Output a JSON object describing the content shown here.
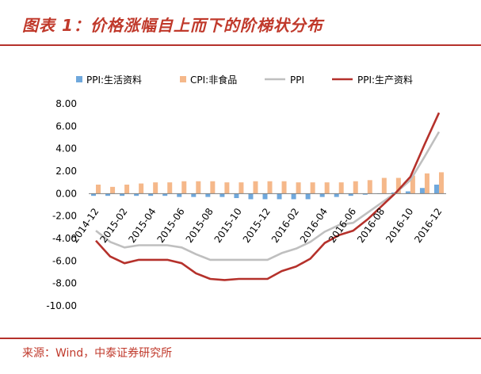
{
  "header": {
    "title": "图表 1：价格涨幅自上而下的阶梯状分布"
  },
  "footer": {
    "source": "来源：Wind，中泰证券研究所"
  },
  "chart_data": {
    "type": "bar+line",
    "y_ticks": [
      "8.00",
      "6.00",
      "4.00",
      "2.00",
      "0.00",
      "-2.00",
      "-4.00",
      "-6.00",
      "-8.00",
      "-10.00"
    ],
    "ylim": [
      -10,
      8
    ],
    "x_tick_labels": [
      "2014-12",
      "2015-02",
      "2015-04",
      "2015-06",
      "2015-08",
      "2015-10",
      "2015-12",
      "2016-02",
      "2016-04",
      "2016-06",
      "2016-08",
      "2016-10",
      "2016-12"
    ],
    "months": [
      "2014-12",
      "2015-01",
      "2015-02",
      "2015-03",
      "2015-04",
      "2015-05",
      "2015-06",
      "2015-07",
      "2015-08",
      "2015-09",
      "2015-10",
      "2015-11",
      "2015-12",
      "2016-01",
      "2016-02",
      "2016-03",
      "2016-04",
      "2016-05",
      "2016-06",
      "2016-07",
      "2016-08",
      "2016-09",
      "2016-10",
      "2016-11",
      "2016-12"
    ],
    "series": [
      {
        "name": "PPI:生活资料",
        "type": "bar",
        "color": "#6fa8dc",
        "values": [
          -0.2,
          -0.2,
          -0.2,
          -0.2,
          -0.2,
          -0.2,
          -0.3,
          -0.3,
          -0.3,
          -0.3,
          -0.4,
          -0.5,
          -0.5,
          -0.5,
          -0.5,
          -0.5,
          -0.3,
          -0.3,
          -0.2,
          -0.1,
          0.0,
          0.1,
          0.2,
          0.5,
          0.8
        ]
      },
      {
        "name": "CPI:非食品",
        "type": "bar",
        "color": "#f5b88a",
        "values": [
          0.8,
          0.6,
          0.8,
          0.9,
          1.0,
          1.0,
          1.1,
          1.1,
          1.1,
          1.0,
          1.0,
          1.1,
          1.1,
          1.1,
          1.0,
          1.0,
          1.0,
          1.0,
          1.1,
          1.2,
          1.4,
          1.4,
          1.6,
          1.8,
          1.9
        ]
      },
      {
        "name": "PPI",
        "type": "line",
        "color": "#bfbfbf",
        "values": [
          -3.3,
          -4.3,
          -4.8,
          -4.6,
          -4.6,
          -4.6,
          -4.8,
          -5.4,
          -5.9,
          -5.9,
          -5.9,
          -5.9,
          -5.9,
          -5.3,
          -4.9,
          -4.3,
          -3.4,
          -2.8,
          -2.6,
          -1.7,
          -0.8,
          0.1,
          1.2,
          3.3,
          5.5
        ]
      },
      {
        "name": "PPI:生产资料",
        "type": "line",
        "color": "#b5312b",
        "values": [
          -4.2,
          -5.6,
          -6.2,
          -5.9,
          -5.9,
          -5.9,
          -6.2,
          -7.1,
          -7.6,
          -7.7,
          -7.6,
          -7.6,
          -7.6,
          -6.9,
          -6.5,
          -5.8,
          -4.4,
          -3.7,
          -3.3,
          -2.3,
          -1.1,
          0.1,
          1.5,
          4.4,
          7.2
        ]
      }
    ]
  }
}
